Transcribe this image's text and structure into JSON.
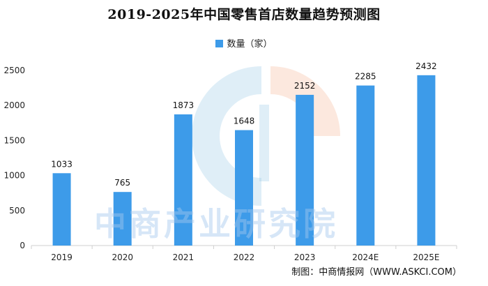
{
  "title": "2019-2025年中国零售首店数量趋势预测图",
  "credit": "制图：中商情报网（WWW.ASKCI.COM）",
  "watermark": "中商产业研究院",
  "colors": {
    "bar": "#3d9be9",
    "axis": "#cfcfcf"
  },
  "chart_data": {
    "type": "bar",
    "categories": [
      "2019",
      "2020",
      "2021",
      "2022",
      "2023",
      "2024E",
      "2025E"
    ],
    "series": [
      {
        "name": "数量（家）",
        "values": [
          1033,
          765,
          1873,
          1648,
          2152,
          2285,
          2432
        ]
      }
    ],
    "ylim": [
      0,
      2500
    ],
    "yticks": [
      0,
      500,
      1000,
      1500,
      2000,
      2500
    ],
    "grid": false,
    "legend": "top-center",
    "xlabel": "",
    "ylabel": ""
  }
}
